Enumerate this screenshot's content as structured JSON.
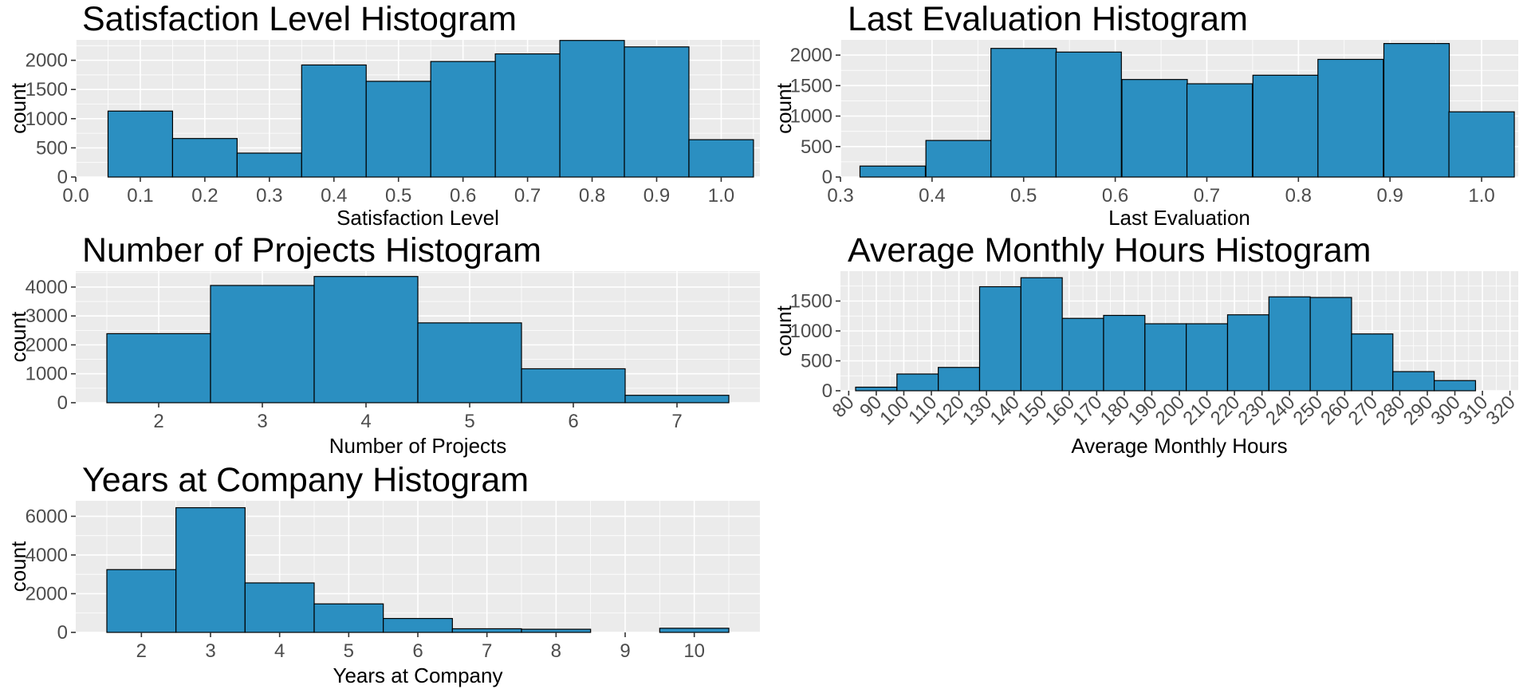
{
  "bar_fill": "#2b8fc1",
  "chart_data": [
    {
      "type": "bar",
      "title": "Satisfaction Level Histogram",
      "xlabel": "Satisfaction Level",
      "ylabel": "count",
      "xlim": [
        0.0,
        1.06
      ],
      "ylim": [
        0,
        2350
      ],
      "bin_width": 0.1,
      "bins": [
        {
          "x": 0.1,
          "count": 1130
        },
        {
          "x": 0.2,
          "count": 660
        },
        {
          "x": 0.3,
          "count": 410
        },
        {
          "x": 0.4,
          "count": 1920
        },
        {
          "x": 0.5,
          "count": 1640
        },
        {
          "x": 0.6,
          "count": 1980
        },
        {
          "x": 0.7,
          "count": 2110
        },
        {
          "x": 0.8,
          "count": 2340
        },
        {
          "x": 0.9,
          "count": 2230
        },
        {
          "x": 1.0,
          "count": 640
        }
      ],
      "x_ticks": [
        {
          "v": 0.0,
          "label": "0.0"
        },
        {
          "v": 0.1,
          "label": "0.1"
        },
        {
          "v": 0.2,
          "label": "0.2"
        },
        {
          "v": 0.3,
          "label": "0.3"
        },
        {
          "v": 0.4,
          "label": "0.4"
        },
        {
          "v": 0.5,
          "label": "0.5"
        },
        {
          "v": 0.6,
          "label": "0.6"
        },
        {
          "v": 0.7,
          "label": "0.7"
        },
        {
          "v": 0.8,
          "label": "0.8"
        },
        {
          "v": 0.9,
          "label": "0.9"
        },
        {
          "v": 1.0,
          "label": "1.0"
        }
      ],
      "y_ticks": [
        {
          "v": 0,
          "label": "0"
        },
        {
          "v": 500,
          "label": "500"
        },
        {
          "v": 1000,
          "label": "1000"
        },
        {
          "v": 1500,
          "label": "1500"
        },
        {
          "v": 2000,
          "label": "2000"
        }
      ],
      "x_tick_rotate": false
    },
    {
      "type": "bar",
      "title": "Last Evaluation Histogram",
      "xlabel": "Last Evaluation",
      "ylabel": "count",
      "xlim": [
        0.3,
        1.04
      ],
      "ylim": [
        0,
        2250
      ],
      "bin_width": 0.0714,
      "bins": [
        {
          "x": 0.357,
          "count": 180
        },
        {
          "x": 0.429,
          "count": 600
        },
        {
          "x": 0.5,
          "count": 2110
        },
        {
          "x": 0.571,
          "count": 2050
        },
        {
          "x": 0.643,
          "count": 1600
        },
        {
          "x": 0.714,
          "count": 1530
        },
        {
          "x": 0.786,
          "count": 1670
        },
        {
          "x": 0.857,
          "count": 1930
        },
        {
          "x": 0.929,
          "count": 2190
        },
        {
          "x": 1.0,
          "count": 1070
        }
      ],
      "x_ticks": [
        {
          "v": 0.3,
          "label": "0.3"
        },
        {
          "v": 0.4,
          "label": "0.4"
        },
        {
          "v": 0.5,
          "label": "0.5"
        },
        {
          "v": 0.6,
          "label": "0.6"
        },
        {
          "v": 0.7,
          "label": "0.7"
        },
        {
          "v": 0.8,
          "label": "0.8"
        },
        {
          "v": 0.9,
          "label": "0.9"
        },
        {
          "v": 1.0,
          "label": "1.0"
        }
      ],
      "y_ticks": [
        {
          "v": 0,
          "label": "0"
        },
        {
          "v": 500,
          "label": "500"
        },
        {
          "v": 1000,
          "label": "1000"
        },
        {
          "v": 1500,
          "label": "1500"
        },
        {
          "v": 2000,
          "label": "2000"
        }
      ],
      "x_tick_rotate": false
    },
    {
      "type": "bar",
      "title": "Number of Projects Histogram",
      "xlabel": "Number of Projects",
      "ylabel": "count",
      "xlim": [
        1.2,
        7.8
      ],
      "ylim": [
        0,
        4550
      ],
      "bin_width": 1,
      "bins": [
        {
          "x": 2,
          "count": 2388
        },
        {
          "x": 3,
          "count": 4055
        },
        {
          "x": 4,
          "count": 4365
        },
        {
          "x": 5,
          "count": 2761
        },
        {
          "x": 6,
          "count": 1174
        },
        {
          "x": 7,
          "count": 256
        }
      ],
      "x_ticks": [
        {
          "v": 2,
          "label": "2"
        },
        {
          "v": 3,
          "label": "3"
        },
        {
          "v": 4,
          "label": "4"
        },
        {
          "v": 5,
          "label": "5"
        },
        {
          "v": 6,
          "label": "6"
        },
        {
          "v": 7,
          "label": "7"
        }
      ],
      "y_ticks": [
        {
          "v": 0,
          "label": "0"
        },
        {
          "v": 1000,
          "label": "1000"
        },
        {
          "v": 2000,
          "label": "2000"
        },
        {
          "v": 3000,
          "label": "3000"
        },
        {
          "v": 4000,
          "label": "4000"
        }
      ],
      "x_tick_rotate": false
    },
    {
      "type": "bar",
      "title": "Average Monthly Hours Histogram",
      "xlabel": "Average Monthly Hours",
      "ylabel": "count",
      "xlim": [
        77,
        323
      ],
      "ylim": [
        0,
        2000
      ],
      "bin_width": 15,
      "bins": [
        {
          "x": 90,
          "count": 60
        },
        {
          "x": 105,
          "count": 280
        },
        {
          "x": 120,
          "count": 390
        },
        {
          "x": 135,
          "count": 1740
        },
        {
          "x": 150,
          "count": 1890
        },
        {
          "x": 165,
          "count": 1210
        },
        {
          "x": 180,
          "count": 1260
        },
        {
          "x": 195,
          "count": 1120
        },
        {
          "x": 210,
          "count": 1120
        },
        {
          "x": 225,
          "count": 1270
        },
        {
          "x": 240,
          "count": 1570
        },
        {
          "x": 255,
          "count": 1560
        },
        {
          "x": 270,
          "count": 950
        },
        {
          "x": 285,
          "count": 320
        },
        {
          "x": 300,
          "count": 170
        }
      ],
      "x_ticks": [
        {
          "v": 80,
          "label": "80"
        },
        {
          "v": 90,
          "label": "90"
        },
        {
          "v": 100,
          "label": "100"
        },
        {
          "v": 110,
          "label": "110"
        },
        {
          "v": 120,
          "label": "120"
        },
        {
          "v": 130,
          "label": "130"
        },
        {
          "v": 140,
          "label": "140"
        },
        {
          "v": 150,
          "label": "150"
        },
        {
          "v": 160,
          "label": "160"
        },
        {
          "v": 170,
          "label": "170"
        },
        {
          "v": 180,
          "label": "180"
        },
        {
          "v": 190,
          "label": "190"
        },
        {
          "v": 200,
          "label": "200"
        },
        {
          "v": 210,
          "label": "210"
        },
        {
          "v": 220,
          "label": "220"
        },
        {
          "v": 230,
          "label": "230"
        },
        {
          "v": 240,
          "label": "240"
        },
        {
          "v": 250,
          "label": "250"
        },
        {
          "v": 260,
          "label": "260"
        },
        {
          "v": 270,
          "label": "270"
        },
        {
          "v": 280,
          "label": "280"
        },
        {
          "v": 290,
          "label": "290"
        },
        {
          "v": 300,
          "label": "300"
        },
        {
          "v": 310,
          "label": "310"
        },
        {
          "v": 320,
          "label": "320"
        }
      ],
      "y_ticks": [
        {
          "v": 0,
          "label": "0"
        },
        {
          "v": 500,
          "label": "500"
        },
        {
          "v": 1000,
          "label": "1000"
        },
        {
          "v": 1500,
          "label": "1500"
        }
      ],
      "x_tick_rotate": true
    },
    {
      "type": "bar",
      "title": "Years at Company Histogram",
      "xlabel": "Years at Company",
      "ylabel": "count",
      "xlim": [
        1.05,
        10.95
      ],
      "ylim": [
        0,
        6800
      ],
      "bin_width": 1,
      "bins": [
        {
          "x": 2,
          "count": 3244
        },
        {
          "x": 3,
          "count": 6443
        },
        {
          "x": 4,
          "count": 2557
        },
        {
          "x": 5,
          "count": 1473
        },
        {
          "x": 6,
          "count": 718
        },
        {
          "x": 7,
          "count": 188
        },
        {
          "x": 8,
          "count": 162
        },
        {
          "x": 9,
          "count": 0
        },
        {
          "x": 10,
          "count": 214
        }
      ],
      "x_ticks": [
        {
          "v": 2,
          "label": "2"
        },
        {
          "v": 3,
          "label": "3"
        },
        {
          "v": 4,
          "label": "4"
        },
        {
          "v": 5,
          "label": "5"
        },
        {
          "v": 6,
          "label": "6"
        },
        {
          "v": 7,
          "label": "7"
        },
        {
          "v": 8,
          "label": "8"
        },
        {
          "v": 9,
          "label": "9"
        },
        {
          "v": 10,
          "label": "10"
        }
      ],
      "y_ticks": [
        {
          "v": 0,
          "label": "0"
        },
        {
          "v": 2000,
          "label": "2000"
        },
        {
          "v": 4000,
          "label": "4000"
        },
        {
          "v": 6000,
          "label": "6000"
        }
      ],
      "x_tick_rotate": false
    }
  ]
}
